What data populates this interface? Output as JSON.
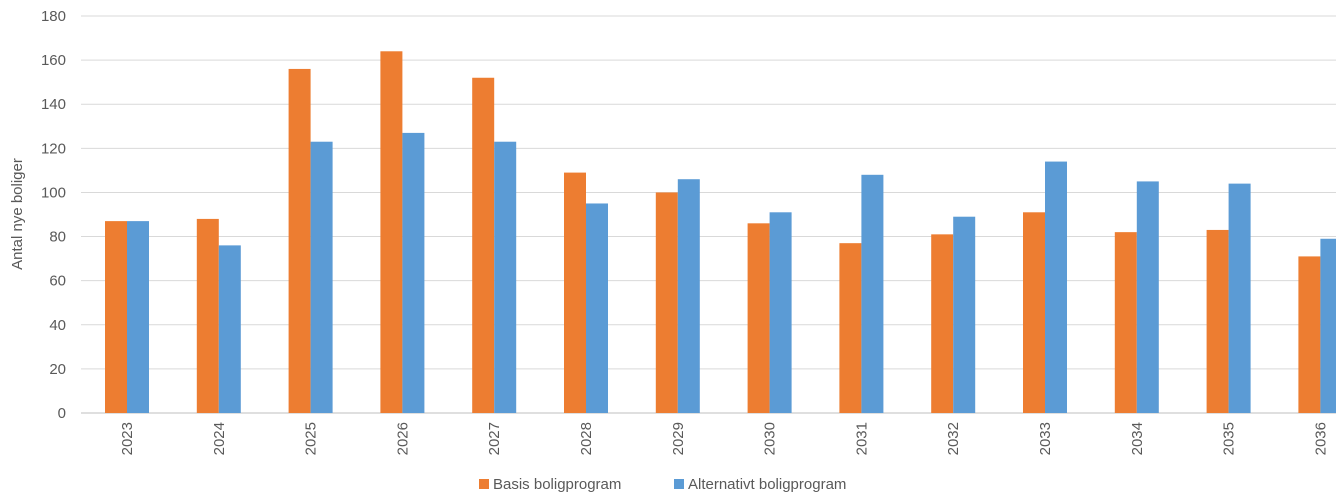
{
  "chart_data": {
    "type": "bar",
    "title": "",
    "xlabel": "",
    "ylabel": "Antal nye boliger",
    "ylim": [
      0,
      180
    ],
    "yticks": [
      0,
      20,
      40,
      60,
      80,
      100,
      120,
      140,
      160,
      180
    ],
    "grid": true,
    "legend_position": "bottom",
    "categories": [
      "2023",
      "2024",
      "2025",
      "2026",
      "2027",
      "2028",
      "2029",
      "2030",
      "2031",
      "2032",
      "2033",
      "2034",
      "2035",
      "2036"
    ],
    "series": [
      {
        "name": "Basis boligprogram",
        "color": "#ed7d31",
        "values": [
          87,
          88,
          156,
          164,
          152,
          109,
          100,
          86,
          77,
          81,
          91,
          82,
          83,
          71
        ]
      },
      {
        "name": "Alternativt boligprogram",
        "color": "#5b9bd5",
        "values": [
          87,
          76,
          123,
          127,
          123,
          95,
          106,
          91,
          108,
          89,
          114,
          105,
          104,
          79
        ]
      }
    ]
  }
}
